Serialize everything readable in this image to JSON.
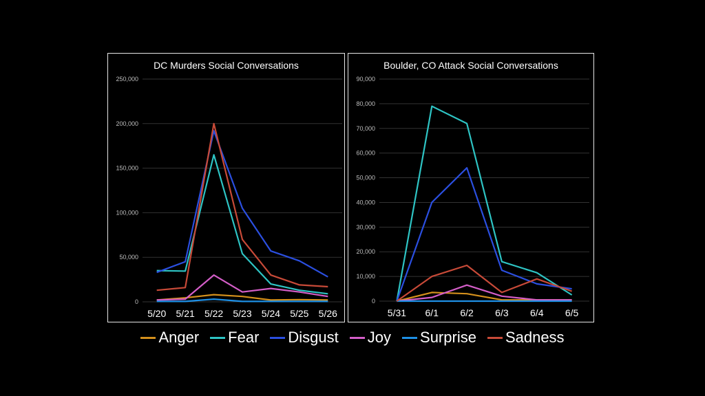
{
  "legend": [
    {
      "name": "Anger",
      "color": "#d4901c"
    },
    {
      "name": "Fear",
      "color": "#2ec4c4"
    },
    {
      "name": "Disgust",
      "color": "#2b4fe0"
    },
    {
      "name": "Joy",
      "color": "#d45ec8"
    },
    {
      "name": "Surprise",
      "color": "#1e90e6"
    },
    {
      "name": "Sadness",
      "color": "#c84a38"
    }
  ],
  "chart_data": [
    {
      "type": "line",
      "title": "DC Murders Social Conversations",
      "categories": [
        "5/20",
        "5/21",
        "5/22",
        "5/23",
        "5/24",
        "5/25",
        "5/26"
      ],
      "yticks": [
        "0",
        "50,000",
        "100,000",
        "150,000",
        "200,000",
        "250,000"
      ],
      "ylim": [
        0,
        250000
      ],
      "grid": true,
      "series": [
        {
          "name": "Anger",
          "values": [
            2000,
            4500,
            8000,
            6000,
            2000,
            2500,
            2000
          ]
        },
        {
          "name": "Fear",
          "values": [
            35000,
            34500,
            165000,
            54000,
            20000,
            13000,
            9000
          ]
        },
        {
          "name": "Disgust",
          "values": [
            33000,
            45000,
            192000,
            105000,
            57000,
            46000,
            28000
          ]
        },
        {
          "name": "Joy",
          "values": [
            2000,
            3000,
            30000,
            11000,
            15000,
            11000,
            6000
          ]
        },
        {
          "name": "Surprise",
          "values": [
            500,
            500,
            3000,
            500,
            500,
            500,
            500
          ]
        },
        {
          "name": "Sadness",
          "values": [
            13000,
            16000,
            200000,
            70000,
            30000,
            19000,
            17000
          ]
        }
      ]
    },
    {
      "type": "line",
      "title": "Boulder, CO Attack Social Conversations",
      "categories": [
        "5/31",
        "6/1",
        "6/2",
        "6/3",
        "6/4",
        "6/5"
      ],
      "yticks": [
        "0",
        "10,000",
        "20,000",
        "30,000",
        "40,000",
        "50,000",
        "60,000",
        "70,000",
        "80,000",
        "90,000"
      ],
      "ylim": [
        0,
        90000
      ],
      "grid": true,
      "series": [
        {
          "name": "Anger",
          "values": [
            0,
            3500,
            3000,
            500,
            500,
            500
          ]
        },
        {
          "name": "Fear",
          "values": [
            0,
            79000,
            72000,
            16000,
            11500,
            2500
          ]
        },
        {
          "name": "Disgust",
          "values": [
            0,
            40000,
            54000,
            12500,
            7000,
            5000
          ]
        },
        {
          "name": "Joy",
          "values": [
            0,
            1500,
            6500,
            2000,
            500,
            500
          ]
        },
        {
          "name": "Surprise",
          "values": [
            0,
            0,
            0,
            0,
            0,
            0
          ]
        },
        {
          "name": "Sadness",
          "values": [
            0,
            10000,
            14500,
            3500,
            9000,
            4000
          ]
        }
      ]
    }
  ]
}
